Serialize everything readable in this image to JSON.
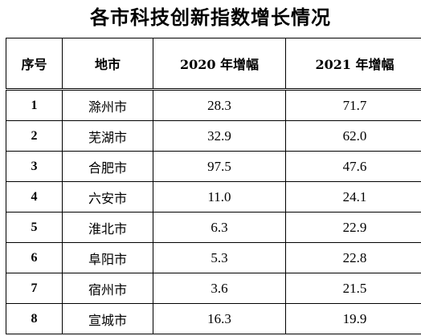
{
  "title": "各市科技创新指数增长情况",
  "table": {
    "headers": [
      "序号",
      "地市",
      "2020 年增幅",
      "2021 年增幅"
    ],
    "rows": [
      {
        "index": "1",
        "city": "滁州市",
        "growth_2020": "28.3",
        "growth_2021": "71.7"
      },
      {
        "index": "2",
        "city": "芜湖市",
        "growth_2020": "32.9",
        "growth_2021": "62.0"
      },
      {
        "index": "3",
        "city": "合肥市",
        "growth_2020": "97.5",
        "growth_2021": "47.6"
      },
      {
        "index": "4",
        "city": "六安市",
        "growth_2020": "11.0",
        "growth_2021": "24.1"
      },
      {
        "index": "5",
        "city": "淮北市",
        "growth_2020": "6.3",
        "growth_2021": "22.9"
      },
      {
        "index": "6",
        "city": "阜阳市",
        "growth_2020": "5.3",
        "growth_2021": "22.8"
      },
      {
        "index": "7",
        "city": "宿州市",
        "growth_2020": "3.6",
        "growth_2021": "21.5"
      },
      {
        "index": "8",
        "city": "宣城市",
        "growth_2020": "16.3",
        "growth_2021": "19.9"
      }
    ]
  }
}
